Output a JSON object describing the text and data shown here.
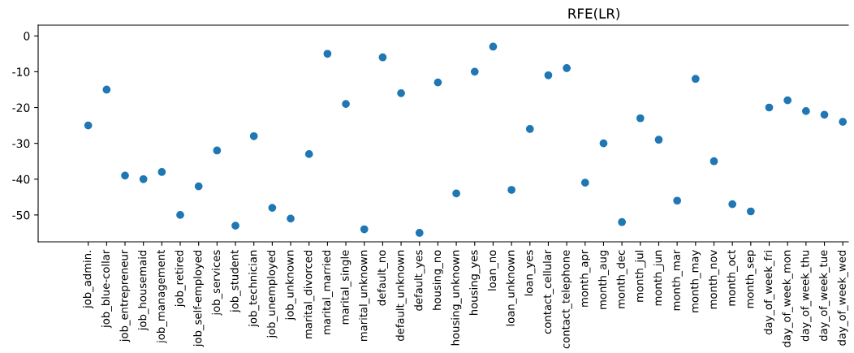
{
  "chart_data": {
    "type": "scatter",
    "title": "RFE(LR)",
    "categories": [
      "job_admin.",
      "job_blue-collar",
      "job_entrepreneur",
      "job_housemaid",
      "job_management",
      "job_retired",
      "job_self-employed",
      "job_services",
      "job_student",
      "job_technician",
      "job_unemployed",
      "job_unknown",
      "marital_divorced",
      "marital_married",
      "marital_single",
      "marital_unknown",
      "default_no",
      "default_unknown",
      "default_yes",
      "housing_no",
      "housing_unknown",
      "housing_yes",
      "loan_no",
      "loan_unknown",
      "loan_yes",
      "contact_cellular",
      "contact_telephone",
      "month_apr",
      "month_aug",
      "month_dec",
      "month_jul",
      "month_jun",
      "month_mar",
      "month_may",
      "month_nov",
      "month_oct",
      "month_sep",
      "day_of_week_fri",
      "day_of_week_mon",
      "day_of_week_thu",
      "day_of_week_tue",
      "day_of_week_wed"
    ],
    "series": [
      {
        "color": "#1f77b4",
        "values": [
          -25,
          -15,
          -39,
          -40,
          -38,
          -50,
          -42,
          -32,
          -53,
          -28,
          -48,
          -51,
          -33,
          -5,
          -19,
          -54,
          -6,
          -16,
          -55,
          -13,
          -44,
          -10,
          -3,
          -43,
          -26,
          -11,
          -9,
          -41,
          -30,
          -52,
          -23,
          -29,
          -46,
          -12,
          -35,
          -47,
          -49,
          -20,
          -18,
          -21,
          -22,
          -24
        ]
      }
    ],
    "ylim": [
      -57.5,
      3
    ],
    "yticks": [
      0,
      -10,
      -20,
      -30,
      -40,
      -50
    ],
    "grid": false,
    "legend": false,
    "marker": "circle"
  }
}
